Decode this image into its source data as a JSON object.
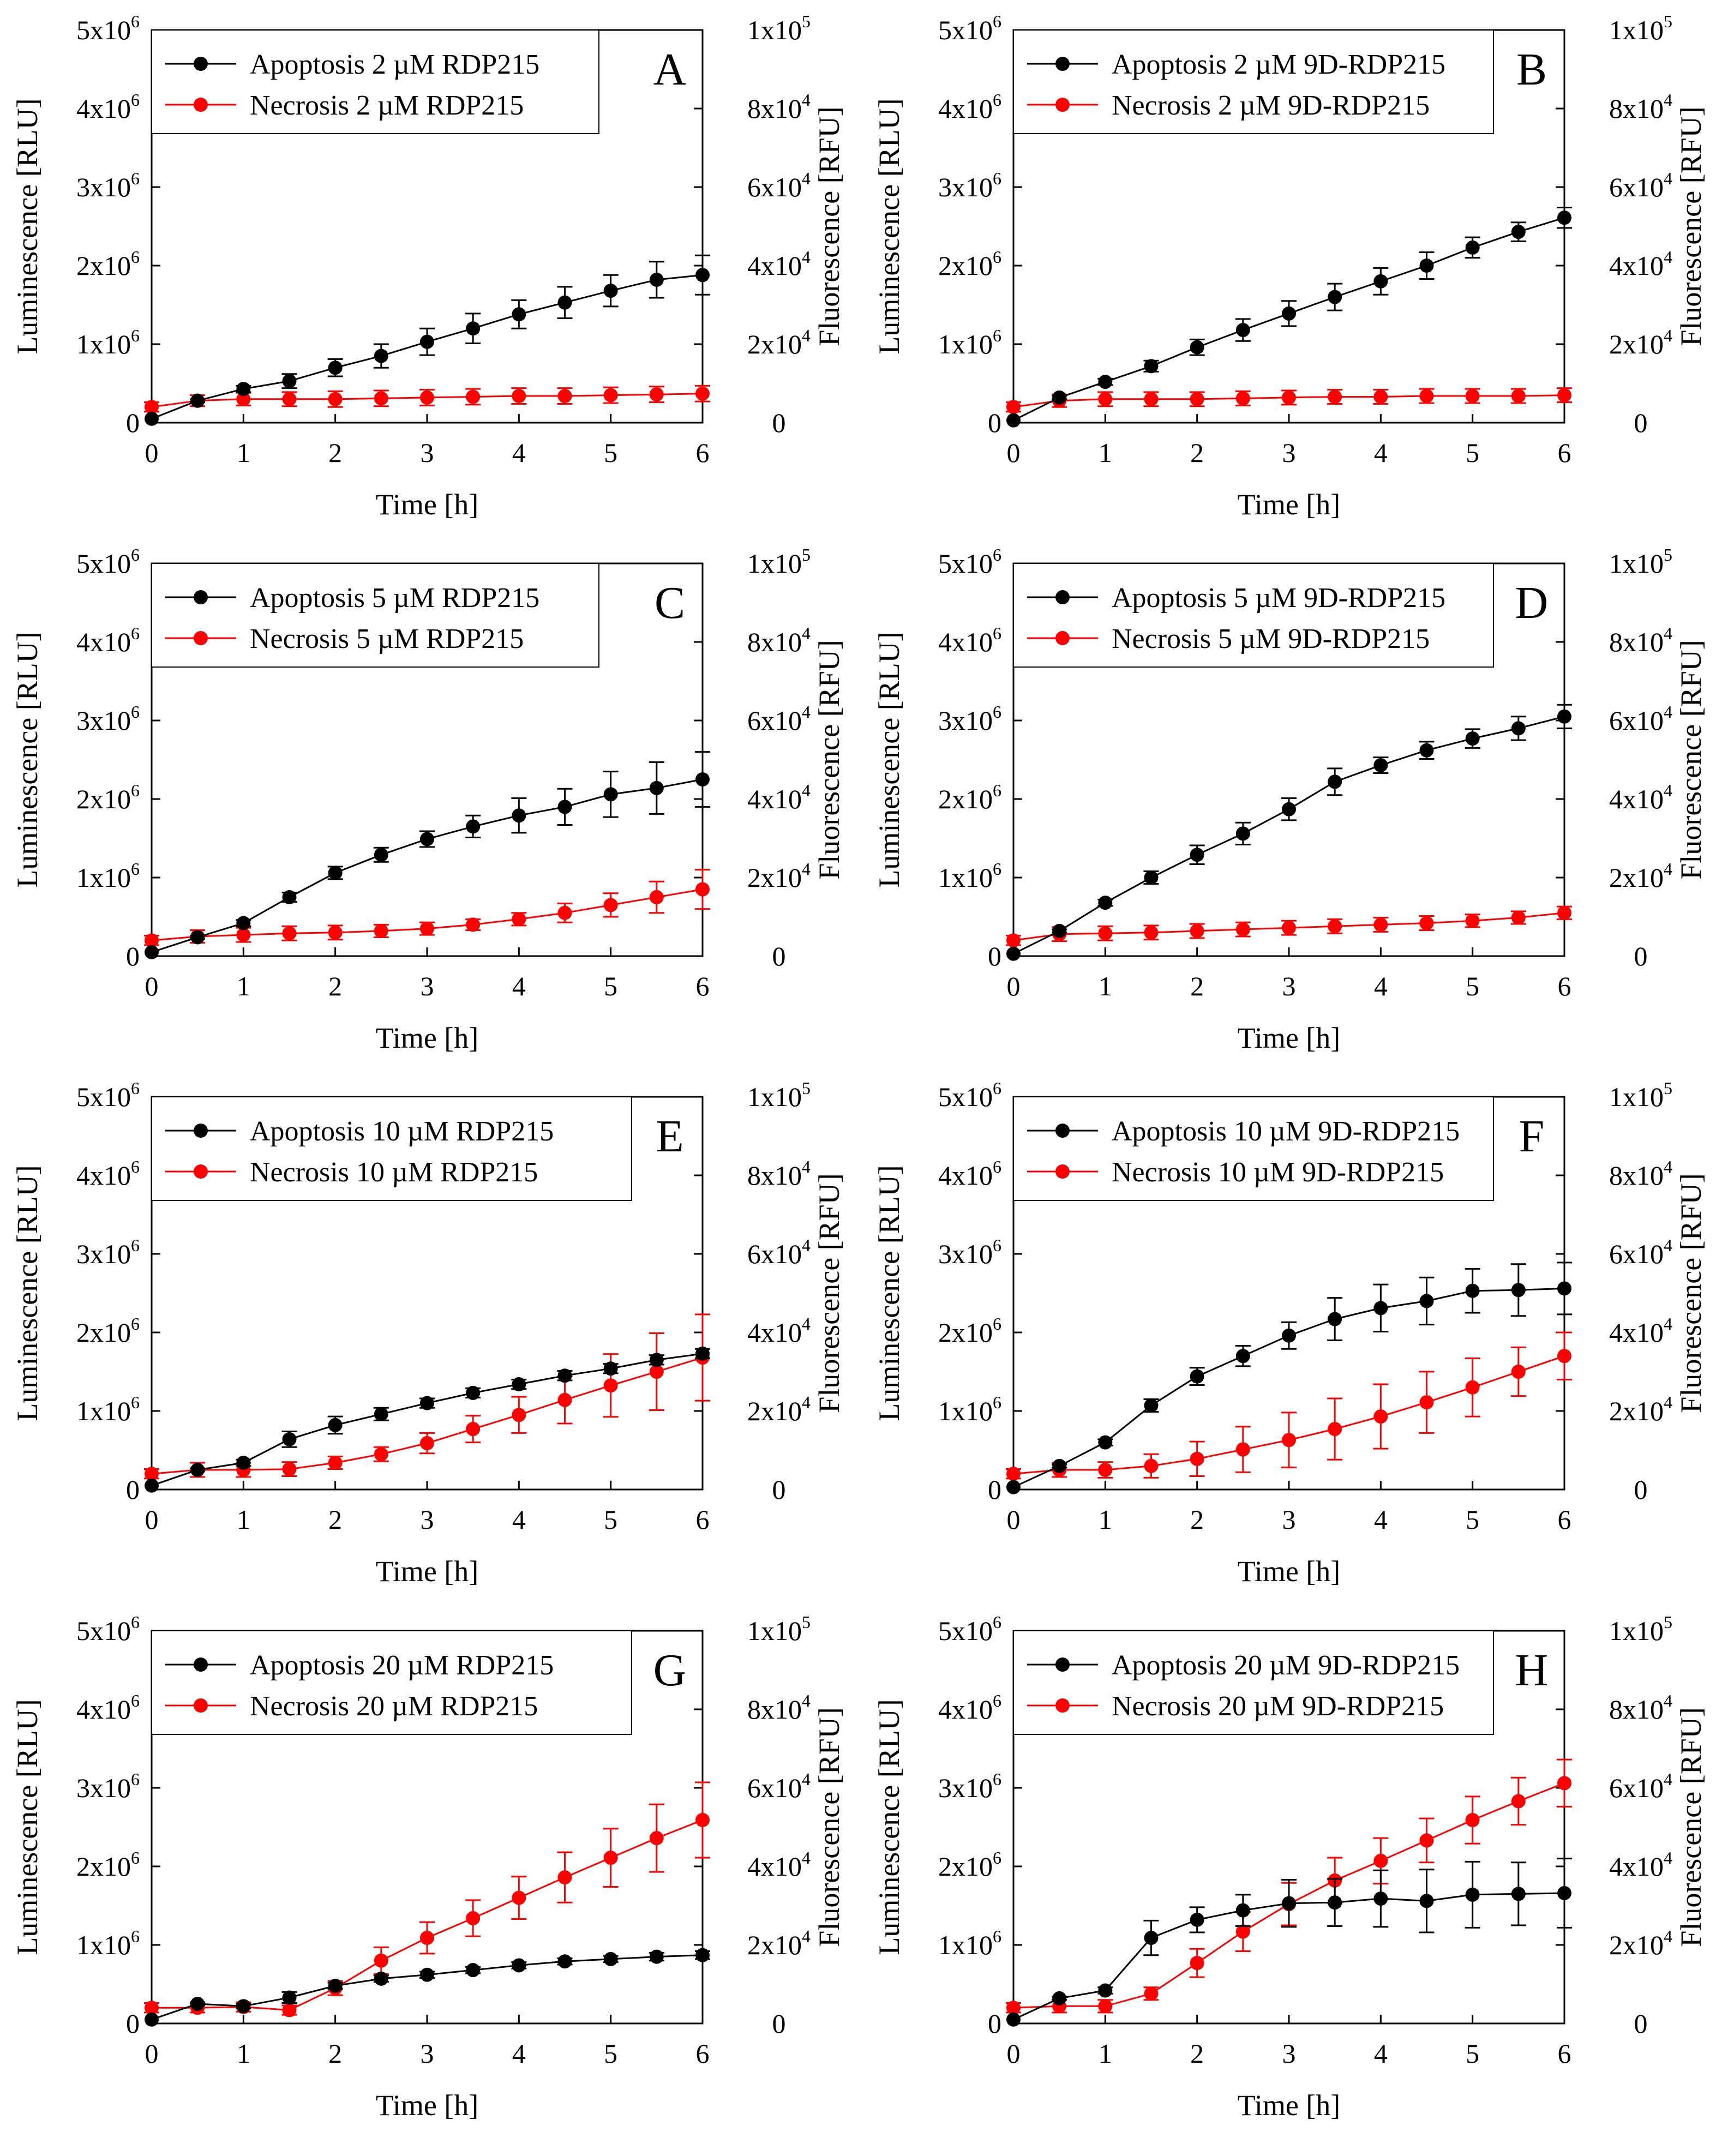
{
  "figure": {
    "y_left_title": "Luminescence [RLU]",
    "y_right_title": "Fluorescence [RFU]",
    "x_title": "Time [h]",
    "y_left_ticks": [
      {
        "base": "0",
        "exp": ""
      },
      {
        "base": "1x10",
        "exp": "6"
      },
      {
        "base": "2x10",
        "exp": "6"
      },
      {
        "base": "3x10",
        "exp": "6"
      },
      {
        "base": "4x10",
        "exp": "6"
      },
      {
        "base": "5x10",
        "exp": "6"
      }
    ],
    "y_right_ticks": [
      {
        "base": "0",
        "exp": ""
      },
      {
        "base": "2x10",
        "exp": "4"
      },
      {
        "base": "4x10",
        "exp": "4"
      },
      {
        "base": "6x10",
        "exp": "4"
      },
      {
        "base": "8x10",
        "exp": "4"
      },
      {
        "base": "1x10",
        "exp": "5"
      }
    ],
    "x_ticks": [
      "0",
      "1",
      "2",
      "3",
      "4",
      "5",
      "6"
    ]
  },
  "colors": {
    "apoptosis": "#000000",
    "necrosis": "#ff0000"
  },
  "chart_data": [
    {
      "type": "line",
      "panel": "A",
      "x": [
        0,
        0.5,
        1,
        1.5,
        2,
        2.5,
        3,
        3.5,
        4,
        4.5,
        5,
        5.5,
        6
      ],
      "xlim": [
        0,
        6
      ],
      "ylim_left": [
        0,
        5000000
      ],
      "ylim_right": [
        0,
        100000
      ],
      "series": [
        {
          "name": "Apoptosis 2 µM RDP215",
          "axis": "left",
          "values": [
            50000,
            280000,
            430000,
            530000,
            700000,
            850000,
            1030000,
            1200000,
            1380000,
            1530000,
            1680000,
            1820000,
            1880000
          ],
          "errors": [
            0,
            20000,
            40000,
            90000,
            110000,
            150000,
            170000,
            190000,
            180000,
            200000,
            200000,
            230000,
            250000
          ]
        },
        {
          "name": "Necrosis   2 µM RDP215",
          "axis": "right",
          "values": [
            4000,
            5600,
            6000,
            6000,
            6000,
            6200,
            6400,
            6600,
            6800,
            6800,
            7000,
            7200,
            7400
          ],
          "errors": [
            1200,
            1400,
            1600,
            1800,
            2000,
            2000,
            2000,
            2000,
            2000,
            2000,
            2000,
            2000,
            2000
          ]
        }
      ]
    },
    {
      "type": "line",
      "panel": "B",
      "x": [
        0,
        0.5,
        1,
        1.5,
        2,
        2.5,
        3,
        3.5,
        4,
        4.5,
        5,
        5.5,
        6
      ],
      "xlim": [
        0,
        6
      ],
      "ylim_left": [
        0,
        5000000
      ],
      "ylim_right": [
        0,
        100000
      ],
      "series": [
        {
          "name": "Apoptosis 2 µM 9D-RDP215",
          "axis": "left",
          "values": [
            30000,
            320000,
            520000,
            720000,
            960000,
            1180000,
            1390000,
            1600000,
            1800000,
            2000000,
            2230000,
            2430000,
            2610000
          ],
          "errors": [
            0,
            20000,
            40000,
            70000,
            100000,
            140000,
            160000,
            170000,
            170000,
            170000,
            130000,
            120000,
            130000
          ]
        },
        {
          "name": "Necrosis   2 µM 9D-RDP215",
          "axis": "right",
          "values": [
            4000,
            5600,
            6000,
            6000,
            6000,
            6200,
            6400,
            6600,
            6600,
            6800,
            6800,
            6800,
            7000
          ],
          "errors": [
            1200,
            1600,
            1800,
            1800,
            1800,
            1800,
            1800,
            1800,
            1800,
            1800,
            1800,
            1800,
            1800
          ]
        }
      ]
    },
    {
      "type": "line",
      "panel": "C",
      "x": [
        0,
        0.5,
        1,
        1.5,
        2,
        2.5,
        3,
        3.5,
        4,
        4.5,
        5,
        5.5,
        6
      ],
      "xlim": [
        0,
        6
      ],
      "ylim_left": [
        0,
        5000000
      ],
      "ylim_right": [
        0,
        100000
      ],
      "series": [
        {
          "name": "Apoptosis 5 µM RDP215",
          "axis": "left",
          "values": [
            50000,
            240000,
            420000,
            750000,
            1060000,
            1290000,
            1490000,
            1650000,
            1790000,
            1900000,
            2060000,
            2140000,
            2250000
          ],
          "errors": [
            0,
            20000,
            40000,
            60000,
            80000,
            90000,
            100000,
            140000,
            220000,
            230000,
            290000,
            330000,
            350000
          ]
        },
        {
          "name": "Necrosis   5 µM RDP215",
          "axis": "right",
          "values": [
            4000,
            5000,
            5400,
            5800,
            6000,
            6400,
            7000,
            8000,
            9400,
            11000,
            13000,
            15000,
            17000
          ],
          "errors": [
            1200,
            1600,
            1800,
            1800,
            1800,
            1600,
            1600,
            1400,
            1600,
            2400,
            3000,
            4000,
            5000
          ]
        }
      ]
    },
    {
      "type": "line",
      "panel": "D",
      "x": [
        0,
        0.5,
        1,
        1.5,
        2,
        2.5,
        3,
        3.5,
        4,
        4.5,
        5,
        5.5,
        6
      ],
      "xlim": [
        0,
        6
      ],
      "ylim_left": [
        0,
        5000000
      ],
      "ylim_right": [
        0,
        100000
      ],
      "series": [
        {
          "name": "Apoptosis 5 µM 9D-RDP215",
          "axis": "left",
          "values": [
            30000,
            320000,
            680000,
            1000000,
            1290000,
            1560000,
            1870000,
            2220000,
            2430000,
            2620000,
            2770000,
            2900000,
            3050000
          ],
          "errors": [
            0,
            20000,
            40000,
            80000,
            120000,
            140000,
            140000,
            170000,
            100000,
            110000,
            120000,
            150000,
            150000
          ]
        },
        {
          "name": "Necrosis   5 µM 9D-RDP215",
          "axis": "right",
          "values": [
            4000,
            5600,
            5800,
            6000,
            6400,
            6800,
            7200,
            7600,
            8000,
            8400,
            9000,
            9800,
            11000
          ],
          "errors": [
            1200,
            1800,
            1800,
            1800,
            1800,
            1800,
            1800,
            1800,
            1800,
            1800,
            1600,
            1600,
            1600
          ]
        }
      ]
    },
    {
      "type": "line",
      "panel": "E",
      "x": [
        0,
        0.5,
        1,
        1.5,
        2,
        2.5,
        3,
        3.5,
        4,
        4.5,
        5,
        5.5,
        6
      ],
      "xlim": [
        0,
        6
      ],
      "ylim_left": [
        0,
        5000000
      ],
      "ylim_right": [
        0,
        100000
      ],
      "series": [
        {
          "name": "Apoptosis 10 µM RDP215",
          "axis": "left",
          "values": [
            50000,
            250000,
            340000,
            640000,
            820000,
            960000,
            1100000,
            1230000,
            1340000,
            1450000,
            1540000,
            1650000,
            1730000
          ],
          "errors": [
            0,
            20000,
            40000,
            100000,
            110000,
            80000,
            60000,
            60000,
            60000,
            60000,
            60000,
            60000,
            60000
          ]
        },
        {
          "name": "Necrosis   10 µM RDP215",
          "axis": "right",
          "values": [
            4000,
            5000,
            5000,
            5200,
            6800,
            9000,
            11800,
            15400,
            19000,
            22800,
            26500,
            30000,
            33600
          ],
          "errors": [
            1200,
            1800,
            1800,
            1800,
            1600,
            1800,
            2600,
            3400,
            4600,
            6000,
            8000,
            9800,
            11000
          ]
        }
      ]
    },
    {
      "type": "line",
      "panel": "F",
      "x": [
        0,
        0.5,
        1,
        1.5,
        2,
        2.5,
        3,
        3.5,
        4,
        4.5,
        5,
        5.5,
        6
      ],
      "xlim": [
        0,
        6
      ],
      "ylim_left": [
        0,
        5000000
      ],
      "ylim_right": [
        0,
        100000
      ],
      "series": [
        {
          "name": "Apoptosis 10 µM 9D-RDP215",
          "axis": "left",
          "values": [
            30000,
            300000,
            600000,
            1070000,
            1440000,
            1700000,
            1960000,
            2170000,
            2310000,
            2400000,
            2530000,
            2540000,
            2560000
          ],
          "errors": [
            0,
            20000,
            40000,
            80000,
            110000,
            130000,
            170000,
            270000,
            300000,
            300000,
            280000,
            330000,
            330000
          ]
        },
        {
          "name": "Necrosis   10 µM 9D-RDP215",
          "axis": "right",
          "values": [
            4000,
            5000,
            5000,
            6000,
            7800,
            10200,
            12600,
            15400,
            18600,
            22200,
            26000,
            30000,
            34000
          ],
          "errors": [
            1200,
            1800,
            2000,
            3000,
            4400,
            5800,
            7000,
            7800,
            8200,
            7800,
            7400,
            6200,
            6000
          ]
        }
      ]
    },
    {
      "type": "line",
      "panel": "G",
      "x": [
        0,
        0.5,
        1,
        1.5,
        2,
        2.5,
        3,
        3.5,
        4,
        4.5,
        5,
        5.5,
        6
      ],
      "xlim": [
        0,
        6
      ],
      "ylim_left": [
        0,
        5000000
      ],
      "ylim_right": [
        0,
        100000
      ],
      "series": [
        {
          "name": "Apoptosis 20 µM RDP215",
          "axis": "left",
          "values": [
            50000,
            250000,
            220000,
            330000,
            480000,
            570000,
            620000,
            680000,
            740000,
            790000,
            820000,
            850000,
            870000
          ],
          "errors": [
            0,
            20000,
            30000,
            70000,
            40000,
            40000,
            40000,
            40000,
            40000,
            40000,
            40000,
            50000,
            50000
          ]
        },
        {
          "name": "Necrosis   20 µM RDP215",
          "axis": "right",
          "values": [
            4000,
            4000,
            4200,
            3400,
            9000,
            16000,
            21800,
            26800,
            32000,
            37200,
            42200,
            47200,
            51800
          ],
          "errors": [
            1200,
            1200,
            1200,
            1200,
            1800,
            3400,
            4000,
            4600,
            5400,
            6400,
            7400,
            8600,
            9600
          ]
        }
      ]
    },
    {
      "type": "line",
      "panel": "H",
      "x": [
        0,
        0.5,
        1,
        1.5,
        2,
        2.5,
        3,
        3.5,
        4,
        4.5,
        5,
        5.5,
        6
      ],
      "xlim": [
        0,
        6
      ],
      "ylim_left": [
        0,
        5000000
      ],
      "ylim_right": [
        0,
        100000
      ],
      "series": [
        {
          "name": "Apoptosis 20 µM 9D-RDP215",
          "axis": "left",
          "values": [
            50000,
            320000,
            420000,
            1090000,
            1320000,
            1440000,
            1530000,
            1540000,
            1590000,
            1560000,
            1640000,
            1650000,
            1660000
          ],
          "errors": [
            0,
            20000,
            40000,
            220000,
            160000,
            200000,
            300000,
            300000,
            360000,
            400000,
            420000,
            400000,
            440000
          ]
        },
        {
          "name": "Necrosis   20 µM 9D-RDP215",
          "axis": "right",
          "values": [
            4000,
            4400,
            4400,
            7600,
            15400,
            23400,
            30400,
            36400,
            41400,
            46600,
            51800,
            56600,
            61200
          ],
          "errors": [
            1200,
            1600,
            1600,
            1600,
            3600,
            5000,
            5400,
            5800,
            5800,
            5600,
            6000,
            6000,
            6000
          ]
        }
      ]
    }
  ]
}
